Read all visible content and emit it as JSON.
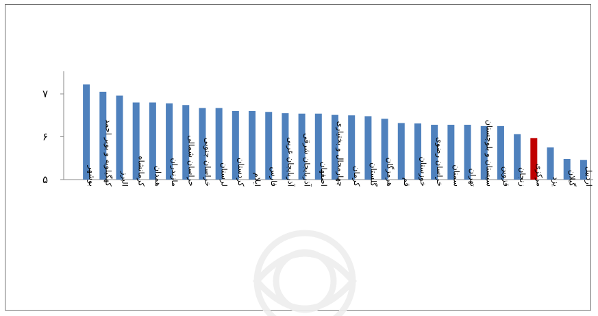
{
  "chart_data": {
    "type": "bar",
    "title": "",
    "xlabel": "",
    "ylabel": "",
    "ylim": [
      5,
      7.5
    ],
    "yticks": [
      5,
      6,
      7
    ],
    "ytick_labels": [
      "۵",
      "۶",
      "۷"
    ],
    "grid": false,
    "legend": "none",
    "bar_color": "#4F81BD",
    "highlight_color": "#C00000",
    "highlight_category": "مرکزی",
    "categories": [
      "بوشهر",
      "کهگیلویه و بویر احمد",
      "البرز",
      "کرمانشاه",
      "همدان",
      "مازندران",
      "خراسان شمالی",
      "خراسان جنوبی",
      "لرستان",
      "کردستان",
      "ایلام",
      "فارس",
      "آذربایجان غربی",
      "آذربایجان شرقی",
      "اصفهان",
      "چهارمحال و بختیاری",
      "کرمان",
      "گلستان",
      "هرمزگان",
      "قم",
      "خوزستان",
      "خراسان رضوی",
      "سمنان",
      "تهران",
      "سیستان و بلوچستان",
      "قزوین",
      "زنجان",
      "مرکزی",
      "یزد",
      "گیلان",
      "اردبیل"
    ],
    "values": [
      7.22,
      7.05,
      6.96,
      6.8,
      6.8,
      6.78,
      6.74,
      6.67,
      6.67,
      6.6,
      6.6,
      6.58,
      6.55,
      6.54,
      6.54,
      6.51,
      6.5,
      6.48,
      6.42,
      6.32,
      6.31,
      6.28,
      6.28,
      6.28,
      6.25,
      6.25,
      6.06,
      5.97,
      5.75,
      5.48,
      5.46
    ]
  },
  "watermark": "university-seal-watermark"
}
